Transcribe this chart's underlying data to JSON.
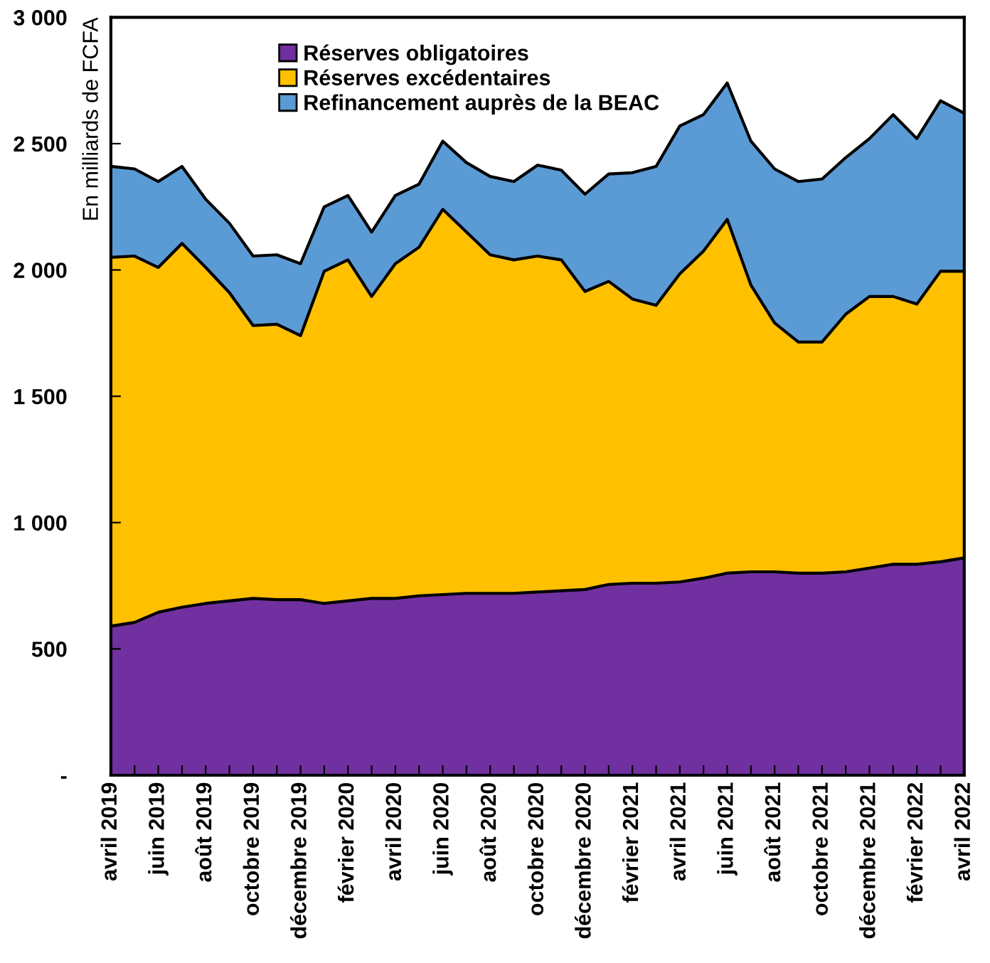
{
  "chart_data": {
    "type": "area",
    "stacked": true,
    "ylabel": "En milliards de FCFA",
    "categories": [
      "avril 2019",
      null,
      "juin 2019",
      null,
      "août 2019",
      null,
      "octobre 2019",
      null,
      "décembre 2019",
      null,
      "février 2020",
      null,
      "avril 2020",
      null,
      "juin 2020",
      null,
      "août 2020",
      null,
      "octobre 2020",
      null,
      "décembre 2020",
      null,
      "février 2021",
      null,
      "avril 2021",
      null,
      "juin 2021",
      null,
      "août 2021",
      null,
      "octobre 2021",
      null,
      "décembre 2021",
      null,
      "février 2022",
      null,
      "avril 2022"
    ],
    "series": [
      {
        "name": "Réserves obligatoires",
        "color": "#7030a0",
        "values": [
          590,
          605,
          645,
          665,
          680,
          690,
          700,
          695,
          695,
          680,
          690,
          700,
          700,
          710,
          715,
          720,
          720,
          720,
          725,
          730,
          735,
          755,
          760,
          760,
          765,
          780,
          800,
          805,
          805,
          800,
          800,
          805,
          820,
          835,
          835,
          845,
          860
        ]
      },
      {
        "name": "Réserves excédentaires",
        "color": "#ffc000",
        "values": [
          1460,
          1450,
          1365,
          1440,
          1330,
          1220,
          1080,
          1090,
          1045,
          1315,
          1350,
          1195,
          1325,
          1380,
          1525,
          1430,
          1340,
          1320,
          1330,
          1310,
          1180,
          1200,
          1125,
          1100,
          1220,
          1295,
          1400,
          1135,
          985,
          915,
          915,
          1020,
          1075,
          1060,
          1030,
          1150,
          1135
        ]
      },
      {
        "name": "Refinancement auprès de la BEAC",
        "color": "#5b9bd5",
        "values": [
          360,
          345,
          340,
          305,
          270,
          275,
          275,
          275,
          285,
          255,
          255,
          255,
          270,
          250,
          270,
          275,
          310,
          310,
          360,
          355,
          385,
          425,
          500,
          550,
          585,
          540,
          540,
          570,
          610,
          635,
          645,
          620,
          625,
          720,
          655,
          675,
          625
        ]
      }
    ],
    "ylim": [
      0,
      3000
    ],
    "yticks": [
      {
        "value": 0,
        "label": "-"
      },
      500,
      {
        "value": 1000,
        "label": "1 000"
      },
      {
        "value": 1500,
        "label": "1 500"
      },
      {
        "value": 2000,
        "label": "2 000"
      },
      {
        "value": 2500,
        "label": "2 500"
      },
      {
        "value": 3000,
        "label": "3 000"
      }
    ],
    "grid": false,
    "legend": "top"
  }
}
